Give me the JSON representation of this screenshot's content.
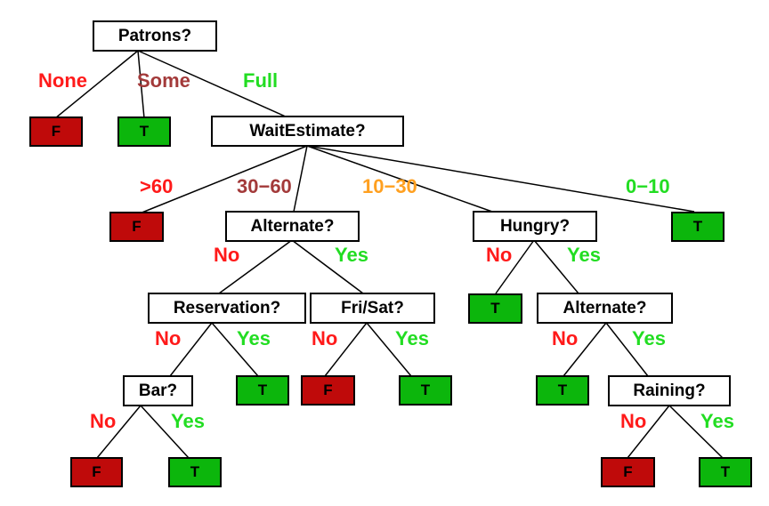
{
  "colors": {
    "false_leaf": "#bf0a0a",
    "true_leaf": "#0cb60c",
    "label_red": "#ff1a1a",
    "label_brown": "#a33a3a",
    "label_green": "#22dd22",
    "label_orange": "#ffa020",
    "edge": "#000000"
  },
  "tree": {
    "patrons": "Patrons?",
    "wait_estimate": "WaitEstimate?",
    "alternate_1": "Alternate?",
    "hungry": "Hungry?",
    "reservation": "Reservation?",
    "fri_sat": "Fri/Sat?",
    "alternate_2": "Alternate?",
    "bar": "Bar?",
    "raining": "Raining?"
  },
  "leaves": {
    "false_symbol": "F",
    "true_symbol": "T"
  },
  "branch_labels": {
    "none": "None",
    "some": "Some",
    "full": "Full",
    "gt60": ">60",
    "w30_60": "30−60",
    "w10_30": "10−30",
    "w0_10": "0−10",
    "no": "No",
    "yes": "Yes"
  }
}
